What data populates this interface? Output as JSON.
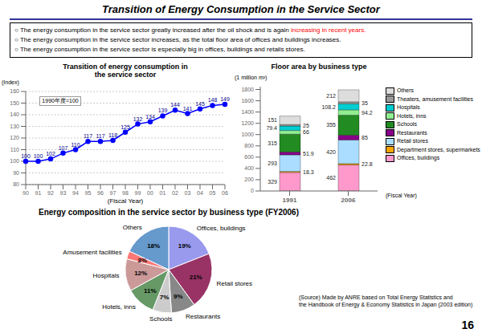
{
  "title": "Transition of Energy Consumption in the Service Sector",
  "annotations": [
    [
      {
        "text": "○ The energy consumption in the service sector greatly increased after the oil shock and is again "
      },
      {
        "text": "increasing in recent years.",
        "color": "red"
      }
    ],
    [
      {
        "text": "○ The energy consumption in the service sector increases, as the total floor area of offices and buildings increases."
      }
    ],
    [
      {
        "text": "○ The energy consumption in the service sector is especially big in offices, buildings and retails stores."
      }
    ]
  ],
  "page_number": "16",
  "chart_data": [
    {
      "type": "line",
      "title": "Transition of energy consumption in\nthe service sector",
      "xlabel": "(Fiscal Year)",
      "ylabel": "(Index)",
      "annotations": [
        "1990年度=100"
      ],
      "categories": [
        "90",
        "91",
        "92",
        "93",
        "94",
        "95",
        "96",
        "97",
        "98",
        "99",
        "00",
        "01",
        "02",
        "03",
        "04",
        "05",
        "06"
      ],
      "values": [
        100,
        100,
        102,
        107,
        110,
        117,
        117,
        118,
        125,
        132,
        134,
        139,
        144,
        141,
        145,
        148,
        149
      ],
      "color": "blue",
      "marker": "circle",
      "ylim": [
        80,
        160
      ],
      "yticks": [
        80,
        90,
        100,
        110,
        120,
        130,
        140,
        150,
        160
      ],
      "grid": true,
      "data_labels": true
    },
    {
      "type": "bar",
      "stacked": true,
      "title": "Floor area by business type",
      "xlabel": "(Fiscal Year)",
      "ylabel": "(1 million m²)",
      "categories": [
        "1991",
        "2006"
      ],
      "series": [
        {
          "name": "Offices, buildings",
          "color": "#FF99CC",
          "values": [
            329,
            462
          ]
        },
        {
          "name": "Department stores, supermarkets",
          "color": "#FFA500",
          "values": [
            18.3,
            22.8
          ]
        },
        {
          "name": "Retail stores",
          "color": "#AADDFF",
          "values": [
            293,
            420
          ]
        },
        {
          "name": "Restaurants",
          "color": "#880088",
          "values": [
            51.9,
            85
          ]
        },
        {
          "name": "Schools",
          "color": "#228B22",
          "values": [
            315,
            355
          ]
        },
        {
          "name": "Hotels, inns",
          "color": "#90EE90",
          "values": [
            66,
            94.2
          ]
        },
        {
          "name": "Hospitals",
          "color": "#00CED1",
          "values": [
            79.4,
            108.2
          ]
        },
        {
          "name": "Theaters, amusement facilities",
          "color": "#999999",
          "values": [
            25,
            35
          ]
        },
        {
          "name": "Others",
          "color": "#DDDDDD",
          "values": [
            151,
            212
          ]
        }
      ],
      "ylim": [
        0,
        1850
      ],
      "yticks": [
        0,
        200,
        400,
        600,
        800,
        1000,
        1200,
        1400,
        1600,
        1800
      ],
      "grid": false,
      "legend": "right",
      "data_labels": true
    },
    {
      "type": "pie",
      "title": "Energy composition in the service sector by business type (FY2006)",
      "categories": [
        "Offices, buildings",
        "Retail stores",
        "Restaurants",
        "Schools",
        "Hotels, inns",
        "Hospitals",
        "Amusement facilities",
        "Others"
      ],
      "values": [
        19,
        21,
        9,
        7,
        11,
        12,
        3,
        18
      ],
      "value_labels": [
        "19%",
        "21%",
        "9%",
        "7%",
        "11%",
        "12%",
        "3%",
        "18%"
      ],
      "colors": [
        "#9999EE",
        "#993366",
        "#888888",
        "#CCCCCC",
        "#669966",
        "#CC9999",
        "#FF7777",
        "#6699CC"
      ],
      "data_labels": true,
      "annotations": [
        "(Source) Made by ANRE based on Total Energy Statistics and\nthe Handbook of Energy & Economy Statistics in Japan (2003 edition)"
      ]
    }
  ]
}
